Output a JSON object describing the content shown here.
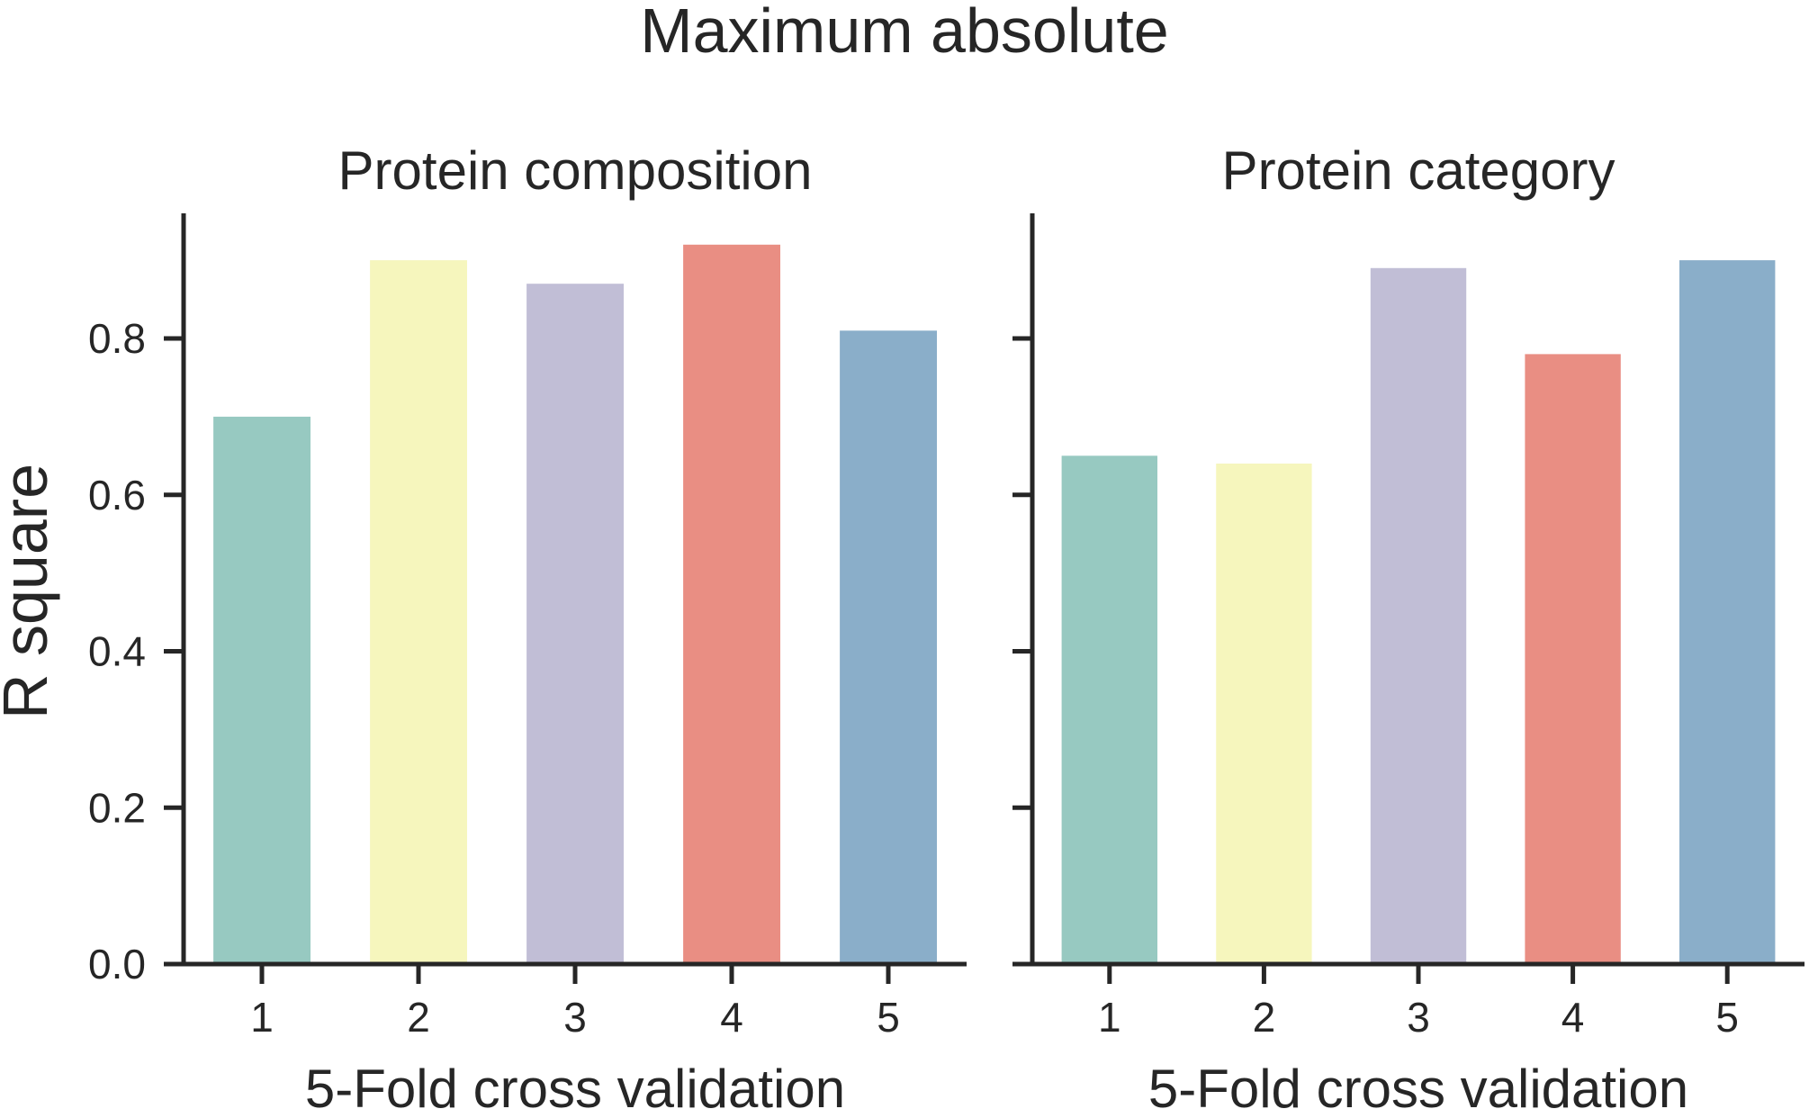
{
  "figure": {
    "suptitle": "Maximum absolute",
    "ylabel": "R square",
    "colors": {
      "axis": "#262626",
      "text": "#262626",
      "background": "#ffffff"
    }
  },
  "chart_data": [
    {
      "type": "bar",
      "title": "Protein composition",
      "xlabel": "5-Fold cross validation",
      "ylabel": "R square",
      "categories": [
        "1",
        "2",
        "3",
        "4",
        "5"
      ],
      "values": [
        0.7,
        0.9,
        0.87,
        0.92,
        0.81
      ],
      "colors": [
        "#97c9c1",
        "#f6f6bd",
        "#c1bed6",
        "#e98e83",
        "#8aaec9"
      ],
      "ylim": [
        0,
        0.96
      ],
      "yticks": [
        0.0,
        0.2,
        0.4,
        0.6,
        0.8
      ],
      "ytick_labels": [
        "0.0",
        "0.2",
        "0.4",
        "0.6",
        "0.8"
      ],
      "grid": false,
      "legend": "none"
    },
    {
      "type": "bar",
      "title": "Protein category",
      "xlabel": "5-Fold cross validation",
      "ylabel": "",
      "categories": [
        "1",
        "2",
        "3",
        "4",
        "5"
      ],
      "values": [
        0.65,
        0.64,
        0.89,
        0.78,
        0.9
      ],
      "colors": [
        "#97c9c1",
        "#f6f6bd",
        "#c1bed6",
        "#e98e83",
        "#8aaec9"
      ],
      "ylim": [
        0,
        0.96
      ],
      "yticks": [
        0.0,
        0.2,
        0.4,
        0.6,
        0.8
      ],
      "ytick_labels": [
        "",
        "",
        "",
        "",
        ""
      ],
      "grid": false,
      "legend": "none"
    }
  ]
}
